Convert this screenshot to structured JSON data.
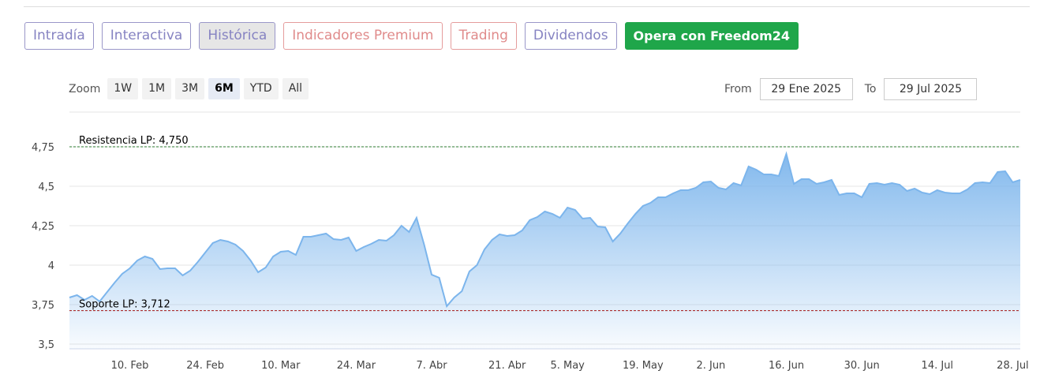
{
  "tabs": [
    "Intradía",
    "Interactiva",
    "Histórica",
    "Indicadores Premium",
    "Trading",
    "Dividendos",
    "Opera con Freedom24"
  ],
  "zoom": {
    "label": "Zoom",
    "buttons": [
      "1W",
      "1M",
      "3M",
      "6M",
      "YTD",
      "All"
    ]
  },
  "range": {
    "from_label": "From",
    "from": "29 Ene 2025",
    "to_label": "To",
    "to": "29 Jul 2025"
  },
  "chart_data": {
    "type": "area",
    "categories": [
      null,
      null,
      null,
      null,
      null,
      null,
      null,
      null,
      "10. Feb",
      null,
      null,
      null,
      null,
      null,
      null,
      null,
      null,
      null,
      "24. Feb",
      null,
      null,
      null,
      null,
      null,
      null,
      null,
      null,
      null,
      "10. Mar",
      null,
      null,
      null,
      null,
      null,
      null,
      null,
      null,
      null,
      "24. Mar",
      null,
      null,
      null,
      null,
      null,
      null,
      null,
      null,
      null,
      "7. Abr",
      null,
      null,
      null,
      null,
      null,
      null,
      null,
      null,
      null,
      "21. Abr",
      null,
      null,
      null,
      null,
      null,
      null,
      null,
      "5. May",
      null,
      null,
      null,
      null,
      null,
      null,
      null,
      null,
      null,
      "19. May",
      null,
      null,
      null,
      null,
      null,
      null,
      null,
      null,
      "2. Jun",
      null,
      null,
      null,
      null,
      null,
      null,
      null,
      null,
      null,
      "16. Jun",
      null,
      null,
      null,
      null,
      null,
      null,
      null,
      null,
      null,
      "30. Jun",
      null,
      null,
      null,
      null,
      null,
      null,
      null,
      null,
      null,
      "14. Jul",
      null,
      null,
      null,
      null,
      null,
      null,
      null,
      null,
      null,
      "28. Jul",
      null
    ],
    "values": [
      3.795,
      3.81,
      3.78,
      3.805,
      3.77,
      3.83,
      3.89,
      3.945,
      3.98,
      4.03,
      4.055,
      4.04,
      3.975,
      3.98,
      3.98,
      3.935,
      3.965,
      4.02,
      4.08,
      4.14,
      4.16,
      4.15,
      4.13,
      4.09,
      4.03,
      3.955,
      3.985,
      4.055,
      4.085,
      4.09,
      4.065,
      4.18,
      4.18,
      4.19,
      4.2,
      4.165,
      4.16,
      4.175,
      4.09,
      4.115,
      4.135,
      4.16,
      4.155,
      4.19,
      4.25,
      4.21,
      4.3,
      4.13,
      3.94,
      3.92,
      3.74,
      3.795,
      3.835,
      3.96,
      4.0,
      4.1,
      4.16,
      4.195,
      4.185,
      4.19,
      4.22,
      4.285,
      4.305,
      4.34,
      4.325,
      4.3,
      4.365,
      4.35,
      4.295,
      4.3,
      4.245,
      4.24,
      4.15,
      4.2,
      4.265,
      4.325,
      4.375,
      4.395,
      4.43,
      4.43,
      4.455,
      4.475,
      4.475,
      4.49,
      4.525,
      4.53,
      4.49,
      4.48,
      4.52,
      4.505,
      4.625,
      4.605,
      4.575,
      4.575,
      4.565,
      4.705,
      4.515,
      4.545,
      4.545,
      4.515,
      4.525,
      4.54,
      4.445,
      4.455,
      4.455,
      4.43,
      4.515,
      4.52,
      4.51,
      4.52,
      4.51,
      4.47,
      4.485,
      4.46,
      4.45,
      4.475,
      4.46,
      4.455,
      4.455,
      4.48,
      4.52,
      4.525,
      4.52,
      4.59,
      4.595,
      4.525,
      4.54
    ],
    "color": "#7cb5ec",
    "ylim": [
      3.47,
      4.97
    ],
    "yticks": [
      {
        "value": 3.5,
        "label": "3,5"
      },
      {
        "value": 3.75,
        "label": "3,75"
      },
      4,
      {
        "value": 4.25,
        "label": "4,25"
      },
      {
        "value": 4.5,
        "label": "4,5"
      },
      {
        "value": 4.75,
        "label": "4,75"
      }
    ],
    "grid": true,
    "annotations": [
      {
        "text": "Resistencia LP: 4,750",
        "value": 4.75,
        "color": "#2e7d32"
      },
      {
        "text": "Soporte LP: 3,712",
        "value": 3.712,
        "color": "#a31515"
      }
    ]
  }
}
